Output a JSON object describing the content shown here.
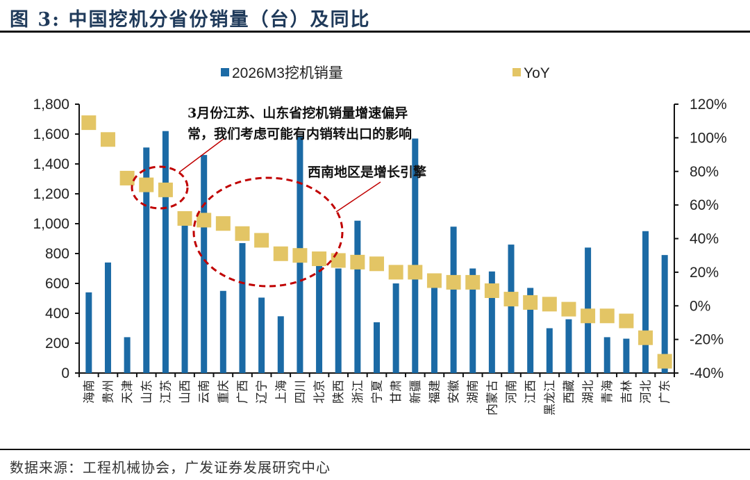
{
  "figure": {
    "title": "图 3:  中国挖机分省份销量（台）及同比",
    "source": "数据来源：工程机械协会，广发证券发展研究中心"
  },
  "colors": {
    "bar": "#1b6aa5",
    "marker": "#e3c565",
    "annotation": "#c00000",
    "axis": "#111111"
  },
  "chart_data": {
    "type": "bar",
    "title": "中国挖机分省份销量（台）及同比",
    "xlabel": "",
    "ylabel": "",
    "categories": [
      "海南",
      "贵州",
      "天津",
      "山东",
      "江苏",
      "山西",
      "云南",
      "重庆",
      "广西",
      "辽宁",
      "上海",
      "四川",
      "北京",
      "陕西",
      "浙江",
      "宁夏",
      "甘肃",
      "新疆",
      "福建",
      "安徽",
      "湖南",
      "内蒙古",
      "河南",
      "江西",
      "黑龙江",
      "西藏",
      "湖北",
      "青海",
      "吉林",
      "河北",
      "广东"
    ],
    "series": [
      {
        "name": "2026M3挖机销量",
        "type": "bar",
        "axis": "left",
        "values": [
          540,
          740,
          240,
          1510,
          1620,
          1000,
          1460,
          550,
          870,
          505,
          380,
          1590,
          720,
          700,
          1020,
          340,
          600,
          1570,
          600,
          980,
          700,
          680,
          860,
          570,
          300,
          360,
          840,
          240,
          230,
          950,
          790
        ]
      },
      {
        "name": "YoY",
        "type": "scatter",
        "marker": "square",
        "axis": "right",
        "unit": "%",
        "values": [
          109,
          99,
          76,
          72,
          69,
          52,
          51,
          49,
          43,
          39,
          31,
          30,
          28,
          27,
          26,
          25,
          20,
          20,
          15,
          14,
          14,
          9,
          4,
          2,
          1,
          -2,
          -6,
          -6,
          -9,
          -19,
          -33
        ]
      }
    ],
    "left_axis": {
      "ylim": [
        0,
        1800
      ],
      "ticks": [
        0,
        200,
        400,
        600,
        800,
        1000,
        1200,
        1400,
        1600,
        1800
      ],
      "tick_labels": [
        "0",
        "200",
        "400",
        "600",
        "800",
        "1,000",
        "1,200",
        "1,400",
        "1,600",
        "1,800"
      ]
    },
    "right_axis": {
      "ylim": [
        -40,
        120
      ],
      "ticks": [
        -40,
        -20,
        0,
        20,
        40,
        60,
        80,
        100,
        120
      ],
      "tick_labels": [
        "-40%",
        "-20%",
        "0%",
        "20%",
        "40%",
        "60%",
        "80%",
        "100%",
        "120%"
      ]
    },
    "grid": false,
    "legend": {
      "placement": "top",
      "entries": [
        "2026M3挖机销量",
        "YoY"
      ]
    },
    "annotations": [
      {
        "lines": [
          "3月份江苏、山东省挖机销量增速偏异",
          "常，我们考虑可能有内销转出口的影响"
        ],
        "highlights": [
          "山东",
          "江苏"
        ]
      },
      {
        "lines": [
          "西南地区是增长引擎"
        ],
        "highlights": [
          "云南",
          "重庆",
          "广西",
          "辽宁",
          "上海",
          "四川",
          "北京"
        ]
      }
    ]
  }
}
